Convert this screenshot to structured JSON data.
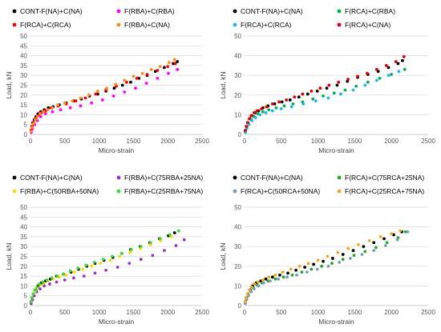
{
  "chart_data": [
    {
      "type": "scatter",
      "title": "",
      "xlabel": "Micro-strain",
      "ylabel": "Load, kN",
      "xlim": [
        0,
        2500
      ],
      "ylim": [
        0,
        50
      ],
      "x_ticks": [
        0,
        500,
        1000,
        1500,
        2000,
        2500
      ],
      "y_ticks": [
        0,
        5,
        10,
        15,
        20,
        25,
        30,
        35,
        40,
        45,
        50
      ],
      "grid": "horizontal",
      "legend_position": "top",
      "series": [
        {
          "name": "CONT-F(NA)+C(NA)",
          "color": "#000000",
          "x": [
            10,
            20,
            35,
            55,
            80,
            110,
            150,
            200,
            260,
            330,
            420,
            520,
            630,
            740,
            860,
            980,
            1100,
            1220,
            1340,
            1460,
            1580,
            1700,
            1820,
            1950,
            2080,
            2140
          ],
          "y": [
            2,
            4,
            6,
            7.5,
            9,
            10.5,
            11.5,
            12.5,
            13.5,
            14,
            15,
            16,
            17,
            18,
            19.5,
            20.5,
            22,
            23.5,
            25,
            26.5,
            28.5,
            30,
            32,
            34,
            36,
            37
          ]
        },
        {
          "name": "F(RBA)+C(RBA)",
          "color": "#ff00ff",
          "x": [
            10,
            30,
            60,
            100,
            150,
            220,
            320,
            440,
            580,
            730,
            890,
            1050,
            1210,
            1370,
            1530,
            1690,
            1850,
            2010,
            2140
          ],
          "y": [
            1,
            3,
            5,
            7,
            9,
            10.5,
            11.5,
            12.5,
            13.5,
            14.5,
            16,
            17.5,
            19.5,
            21.5,
            23.5,
            26,
            28.5,
            31,
            33
          ]
        },
        {
          "name": "F(RCA)+C(RCA)",
          "color": "#ff0000",
          "x": [
            10,
            25,
            45,
            75,
            110,
            160,
            220,
            300,
            400,
            520,
            660,
            800,
            950,
            1100,
            1250,
            1400,
            1550,
            1700,
            1850,
            2000,
            2110
          ],
          "y": [
            2,
            4,
            6,
            8,
            9.5,
            11,
            12,
            13.5,
            14.5,
            15.5,
            17,
            18.5,
            20.5,
            22.5,
            24.5,
            26.5,
            28.5,
            30.5,
            32.5,
            34.5,
            36
          ]
        },
        {
          "name": "F(RBA)+C(NA)",
          "color": "#ff8c1a",
          "x": [
            10,
            25,
            45,
            70,
            100,
            140,
            190,
            250,
            320,
            400,
            500,
            610,
            730,
            850,
            980,
            1110,
            1240,
            1370,
            1500,
            1630,
            1760,
            1890,
            2020,
            2100
          ],
          "y": [
            1.5,
            3.5,
            5.5,
            7.5,
            9,
            10.5,
            11.5,
            12.5,
            13.5,
            15,
            16,
            17,
            18.5,
            20,
            22,
            23.5,
            25.5,
            27.5,
            29.5,
            31,
            33,
            34.5,
            36.5,
            38
          ]
        }
      ]
    },
    {
      "type": "scatter",
      "title": "",
      "xlabel": "Micro-strain",
      "ylabel": "Load, kN",
      "xlim": [
        0,
        2500
      ],
      "ylim": [
        0,
        50
      ],
      "x_ticks": [
        0,
        500,
        1000,
        1500,
        2000,
        2500
      ],
      "y_ticks": [
        0,
        10,
        20,
        30,
        40,
        50
      ],
      "grid": "horizontal",
      "legend_position": "top",
      "series": [
        {
          "name": "CONT-F(NA)+C(NA)",
          "color": "#000000",
          "x": [
            10,
            25,
            45,
            70,
            100,
            140,
            190,
            250,
            320,
            410,
            510,
            620,
            740,
            860,
            990,
            1120,
            1260,
            1400,
            1540,
            1680,
            1820,
            1960,
            2090,
            2150
          ],
          "y": [
            2,
            4,
            6,
            8,
            9.5,
            11,
            12,
            13.5,
            14.5,
            15.5,
            16.5,
            17.5,
            19,
            20.5,
            22,
            23.5,
            25,
            27,
            29,
            30.5,
            32,
            34,
            36,
            37.5
          ]
        },
        {
          "name": "F(RCA)+C(RBA)",
          "color": "#00b050",
          "x": [
            10,
            30,
            55,
            90,
            130,
            180,
            250,
            330,
            430,
            540,
            660,
            790,
            930,
            1070,
            1220,
            1370,
            1520,
            1680,
            1840,
            2000,
            2180
          ],
          "y": [
            1,
            3.5,
            5.5,
            7.5,
            9,
            10.5,
            11.5,
            12.5,
            13.5,
            14.5,
            15.5,
            16.5,
            18,
            19.5,
            21,
            22.5,
            24.5,
            26.5,
            28.5,
            30.5,
            33
          ]
        },
        {
          "name": "F(RCA)+C(RCA)",
          "color": "#1fb5e6",
          "x": [
            10,
            30,
            60,
            100,
            150,
            210,
            290,
            380,
            500,
            640,
            800,
            970,
            1140,
            1310,
            1480,
            1640,
            1800,
            1960,
            2100
          ],
          "y": [
            1,
            3,
            5,
            7,
            8.5,
            10,
            11,
            12,
            13,
            14,
            15.5,
            17,
            18.5,
            20.5,
            22.5,
            25,
            27.5,
            30,
            32
          ]
        },
        {
          "name": "F(RCA)+C(NA)",
          "color": "#e00000",
          "x": [
            10,
            25,
            40,
            65,
            90,
            130,
            170,
            230,
            300,
            380,
            470,
            570,
            680,
            790,
            910,
            1030,
            1150,
            1280,
            1410,
            1540,
            1670,
            1800,
            1930,
            2060,
            2170
          ],
          "y": [
            2,
            4,
            6,
            8,
            9.5,
            11,
            12,
            13,
            14,
            15.5,
            16.5,
            17.5,
            19,
            20.5,
            22,
            23.5,
            25,
            26.5,
            28,
            29.5,
            31,
            33,
            35,
            37,
            39.5
          ]
        }
      ]
    },
    {
      "type": "scatter",
      "title": "",
      "xlabel": "Micro-strain",
      "ylabel": "Load, kN",
      "xlim": [
        0,
        2500
      ],
      "ylim": [
        0,
        50
      ],
      "x_ticks": [
        0,
        500,
        1000,
        1500,
        2000,
        2500
      ],
      "y_ticks": [
        0,
        5,
        10,
        15,
        20,
        25,
        30,
        35,
        40,
        45,
        50
      ],
      "grid": "horizontal",
      "legend_position": "top",
      "series": [
        {
          "name": "CONT-F(NA)+C(NA)",
          "color": "#000000",
          "x": [
            10,
            25,
            45,
            75,
            110,
            160,
            220,
            290,
            380,
            480,
            590,
            700,
            820,
            940,
            1070,
            1200,
            1330,
            1460,
            1600,
            1740,
            1880,
            2010,
            2100
          ],
          "y": [
            2,
            4,
            6,
            8,
            10,
            11.5,
            12.5,
            13.5,
            15,
            16,
            17,
            18.5,
            20,
            21.5,
            23,
            24.5,
            26.5,
            28.5,
            30,
            32,
            34,
            35.5,
            37
          ]
        },
        {
          "name": "F(RBA)+C(75RBA+25NA)",
          "color": "#9933cc",
          "x": [
            10,
            30,
            55,
            90,
            140,
            200,
            280,
            380,
            500,
            630,
            780,
            940,
            1100,
            1270,
            1440,
            1610,
            1780,
            1950,
            2120,
            2240
          ],
          "y": [
            1,
            3,
            5,
            7,
            8.5,
            10,
            11,
            12,
            13,
            14,
            15,
            16.5,
            18,
            19.5,
            21.5,
            23.5,
            25.5,
            28,
            30.5,
            33.5
          ]
        },
        {
          "name": "F(RBA)+C(50RBA+50NA)",
          "color": "#ffd700",
          "x": [
            10,
            25,
            45,
            70,
            100,
            140,
            190,
            250,
            330,
            420,
            520,
            640,
            760,
            890,
            1020,
            1160,
            1300,
            1450,
            1600,
            1750,
            1900,
            2050
          ],
          "y": [
            2,
            4,
            6,
            7.5,
            9,
            10.5,
            11.5,
            12.5,
            13.5,
            14.5,
            15.5,
            17,
            18.5,
            20,
            21.5,
            23,
            25,
            27,
            29,
            31,
            33,
            35
          ]
        },
        {
          "name": "F(RBA)+C(25RBA+75NA)",
          "color": "#33dd33",
          "x": [
            10,
            20,
            40,
            65,
            95,
            130,
            180,
            240,
            310,
            390,
            480,
            580,
            690,
            810,
            930,
            1060,
            1190,
            1330,
            1470,
            1610,
            1750,
            1890,
            2030,
            2160
          ],
          "y": [
            2,
            4,
            6,
            8,
            9.5,
            11,
            12,
            13,
            14,
            15,
            16,
            17.5,
            19,
            20.5,
            22,
            23.5,
            25,
            26.5,
            28.5,
            30,
            32,
            34,
            36,
            38
          ]
        }
      ]
    },
    {
      "type": "scatter",
      "title": "",
      "xlabel": "Micro-strain",
      "ylabel": "Load, kN",
      "xlim": [
        0,
        2500
      ],
      "ylim": [
        0,
        50
      ],
      "x_ticks": [
        0,
        500,
        1000,
        1500,
        2000,
        2500
      ],
      "y_ticks": [
        0,
        10,
        20,
        30,
        40,
        50
      ],
      "grid": "horizontal",
      "legend_position": "top",
      "series": [
        {
          "name": "CONT-F(NA)+C(NA)",
          "color": "#000000",
          "x": [
            10,
            25,
            45,
            75,
            110,
            160,
            220,
            290,
            380,
            480,
            590,
            700,
            820,
            940,
            1070,
            1200,
            1340,
            1480,
            1620,
            1760,
            1900,
            2030,
            2140
          ],
          "y": [
            2,
            4,
            6,
            8,
            10,
            11.5,
            12.5,
            13.5,
            14.5,
            15.5,
            16.5,
            18,
            19.5,
            21,
            22.5,
            24,
            26,
            28,
            30,
            32,
            34,
            36,
            37.5
          ]
        },
        {
          "name": "F(RCA)+C(75RCA+25NA)",
          "color": "#22aa22",
          "x": [
            10,
            25,
            50,
            80,
            120,
            170,
            240,
            320,
            420,
            530,
            650,
            780,
            910,
            1050,
            1190,
            1340,
            1490,
            1640,
            1790,
            1940,
            2090,
            2190
          ],
          "y": [
            1.5,
            3.5,
            5.5,
            7.5,
            9,
            10.5,
            11.5,
            12.5,
            13.5,
            14.5,
            15.5,
            17,
            18.5,
            20,
            21.5,
            23.5,
            25.5,
            27.5,
            29.5,
            32,
            34.5,
            37.5
          ]
        },
        {
          "name": "F(RCA)+C(50RCA+50NA)",
          "color": "#7a9cc0",
          "x": [
            10,
            30,
            55,
            90,
            130,
            190,
            260,
            350,
            460,
            580,
            710,
            850,
            990,
            1140,
            1290,
            1440,
            1600,
            1760,
            1920,
            2080,
            2220
          ],
          "y": [
            1,
            3,
            5,
            7,
            8.5,
            10,
            11.5,
            12.5,
            13.5,
            14.5,
            15.5,
            17,
            18.5,
            20,
            22,
            24,
            26,
            28,
            30.5,
            33.5,
            37.5
          ]
        },
        {
          "name": "F(RCA)+C(25RCA+75NA)",
          "color": "#f5a623",
          "x": [
            10,
            20,
            40,
            65,
            95,
            135,
            185,
            250,
            330,
            420,
            520,
            630,
            750,
            870,
            1000,
            1130,
            1270,
            1410,
            1550,
            1700,
            1850,
            2000,
            2120
          ],
          "y": [
            2,
            4,
            6,
            8,
            9.5,
            11,
            12,
            13,
            14.5,
            15.5,
            17,
            18.5,
            20,
            21.5,
            23,
            25,
            27,
            29,
            31,
            33,
            35,
            36.5,
            38
          ]
        }
      ]
    }
  ]
}
